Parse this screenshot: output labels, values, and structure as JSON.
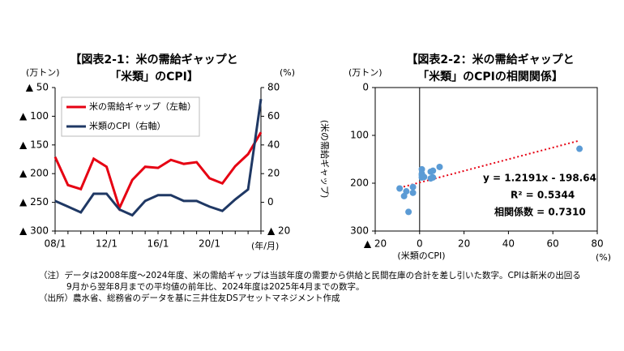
{
  "chart_data": [
    {
      "type": "line",
      "title": "【図表2-1：米の需給ギャップと",
      "subtitle": "「米類」のCPI】",
      "y_label": "(万トン)",
      "y2_label": "(%)",
      "x_label": "(年/月)",
      "categories": [
        "08/1",
        null,
        null,
        null,
        "12/1",
        null,
        null,
        null,
        "16/1",
        null,
        null,
        null,
        "20/1",
        null,
        null,
        null,
        null
      ],
      "series": [
        {
          "name": "米の需給ギャップ（左軸）",
          "color": "#e60012",
          "values": [
            -171,
            -220,
            -227,
            -174,
            -188,
            -260,
            -211,
            -188,
            -190,
            -176,
            -183,
            -180,
            -208,
            -217,
            -187,
            -166,
            -128
          ]
        },
        {
          "name": "米類のCPI（右軸）",
          "color": "#1f3864",
          "axis": "y2",
          "values": [
            1,
            -3,
            -7,
            6,
            6,
            -5,
            -9,
            1,
            5,
            5,
            1,
            1,
            -3,
            -6,
            2,
            9,
            72
          ]
        }
      ],
      "ylim": [
        -300,
        -50
      ],
      "yticks": [
        {
          "value": -50,
          "label": "▲ 50"
        },
        {
          "value": -100,
          "label": "▲ 100"
        },
        {
          "value": -150,
          "label": "▲ 150"
        },
        {
          "value": -200,
          "label": "▲ 200"
        },
        {
          "value": -250,
          "label": "▲ 250"
        },
        {
          "value": -300,
          "label": "▲ 300"
        }
      ],
      "y2lim": [
        -20,
        80
      ],
      "y2ticks": [
        80,
        60,
        40,
        20,
        0,
        {
          "value": -20,
          "label": "▲ 20"
        }
      ]
    },
    {
      "type": "scatter",
      "title": "【図表2-2：米の需給ギャップと",
      "subtitle": "「米類」のCPIの相関関係】",
      "y_label": "(万トン)",
      "y_axis_title": "(米の需給ギャップ)",
      "x_label": "(米類のCPI)",
      "x_unit": "(%)",
      "x": [
        1,
        -3,
        -7,
        6,
        6,
        -5,
        -9,
        1,
        5,
        5,
        1,
        1,
        -3,
        -6,
        2,
        9,
        72
      ],
      "series": [
        {
          "color": "#5b9bd5",
          "values": [
            -171,
            -220,
            -227,
            -174,
            -188,
            -260,
            -211,
            -188,
            -190,
            -176,
            -183,
            -180,
            -208,
            -217,
            -187,
            -166,
            -128
          ]
        }
      ],
      "trendline": {
        "slope": 1.2191,
        "intercept": -198.64,
        "color": "#e60012"
      },
      "annotations": [
        "y = 1.2191x - 198.64",
        "R² = 0.5344",
        "相関係数 = 0.7310"
      ],
      "xlim": [
        -20,
        80
      ],
      "xticks": [
        {
          "value": -20,
          "label": "▲ 20"
        },
        0,
        20,
        40,
        60,
        80
      ],
      "ylim": [
        -300,
        0
      ],
      "yticks": [
        {
          "value": 0,
          "label": "0"
        },
        {
          "value": -100,
          "label": "100"
        },
        {
          "value": -200,
          "label": "200"
        },
        {
          "value": -300,
          "label": "300"
        }
      ]
    }
  ],
  "notes": [
    "（注）データは2008年度～2024年度、米の需給ギャップは当該年度の需要から供給と民間在庫の合計を差し引いた数字。CPIは新米の出回る",
    "9月から翌年8月までの平均値の前年比、2024年度は2025年4月までの数字。",
    "（出所）農水省、総務省のデータを基に三井住友DSアセットマネジメント作成"
  ]
}
